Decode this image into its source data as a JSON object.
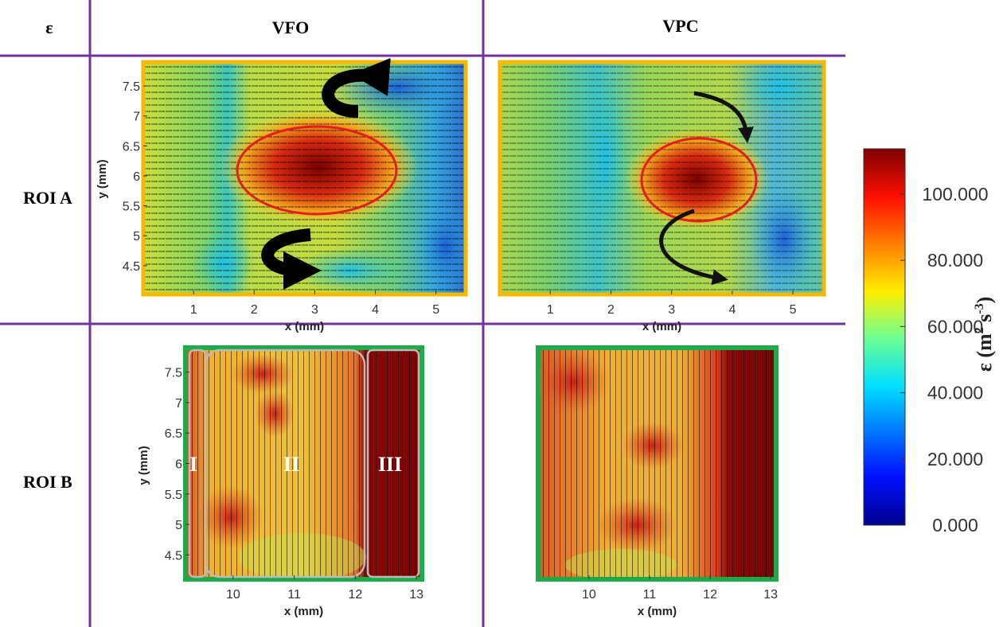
{
  "header": {
    "corner": "ε",
    "columns": [
      "VFO",
      "VPC"
    ]
  },
  "rows": [
    "ROI A",
    "ROI B"
  ],
  "panels": [
    {
      "xlabel": "x (mm)",
      "ylabel": "y (mm)",
      "xlim": [
        0.17,
        5.49
      ],
      "ylim": [
        4.02,
        7.9
      ],
      "xticks": [
        1,
        2,
        3,
        4,
        5
      ],
      "yticks": [
        4.5,
        5,
        5.5,
        6,
        6.5,
        7,
        7.5
      ]
    },
    {
      "xlabel": "x (mm)",
      "xlim": [
        0.17,
        5.51
      ],
      "ylim": [
        4.02,
        7.9
      ],
      "xticks": [
        1,
        2,
        3,
        4,
        5
      ]
    },
    {
      "xlabel": "x (mm)",
      "ylabel": "y (mm)",
      "xlim": [
        9.22,
        13.09
      ],
      "ylim": [
        4.1,
        7.9
      ],
      "xticks": [
        10,
        11,
        12,
        13
      ],
      "yticks": [
        4.5,
        5,
        5.5,
        6,
        6.5,
        7,
        7.5
      ],
      "annotations": [
        "I",
        "II",
        "III"
      ]
    },
    {
      "xlabel": "x (mm)",
      "xlim": [
        9.16,
        13.09
      ],
      "ylim": [
        4.1,
        7.9
      ],
      "xticks": [
        10,
        11,
        12,
        13
      ]
    }
  ],
  "colorbar": {
    "label_parts": [
      "ε (m",
      "2",
      " s",
      "-3",
      ")"
    ],
    "ylim": [
      0,
      113.7
    ],
    "ticks": [
      {
        "value": 0,
        "label": "0.000"
      },
      {
        "value": 20,
        "label": "20.000"
      },
      {
        "value": 40,
        "label": "40.000"
      },
      {
        "value": 60,
        "label": "60.000"
      },
      {
        "value": 80,
        "label": "80.000"
      },
      {
        "value": 100,
        "label": "100.000"
      }
    ]
  }
}
